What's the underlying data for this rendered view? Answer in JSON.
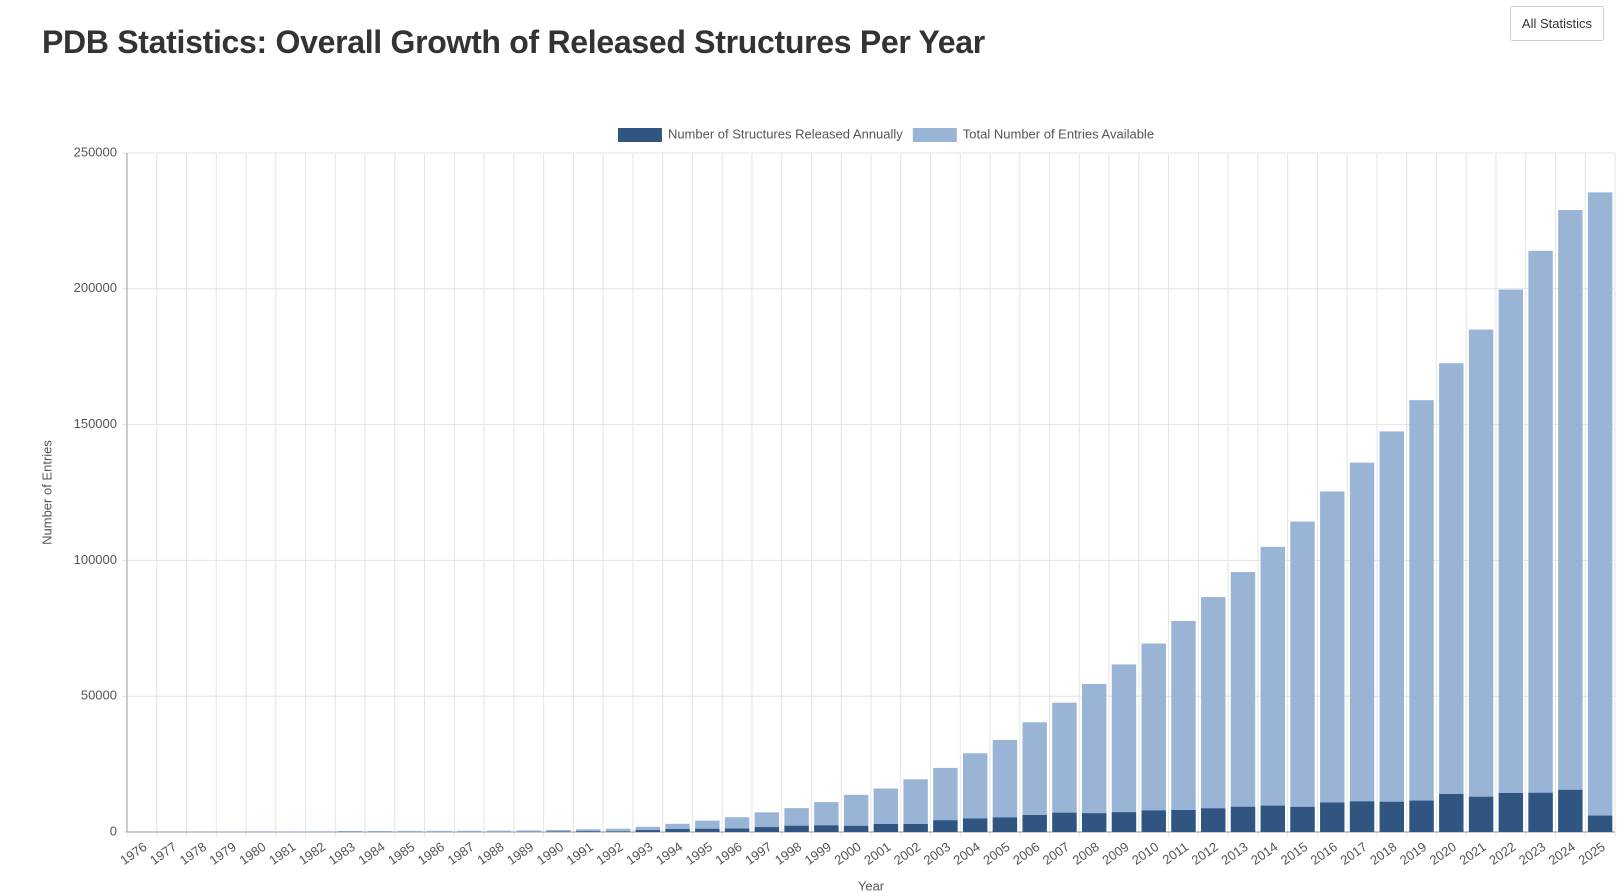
{
  "header": {
    "title": "PDB Statistics: Overall Growth of Released Structures Per Year",
    "button": "All Statistics"
  },
  "chart_data": {
    "type": "bar",
    "x_label": "Year",
    "y_label": "Number of Entries",
    "categories": [
      "1976",
      "1977",
      "1978",
      "1979",
      "1980",
      "1981",
      "1982",
      "1983",
      "1984",
      "1985",
      "1986",
      "1987",
      "1988",
      "1989",
      "1990",
      "1991",
      "1992",
      "1993",
      "1994",
      "1995",
      "1996",
      "1997",
      "1998",
      "1999",
      "2000",
      "2001",
      "2002",
      "2003",
      "2004",
      "2005",
      "2006",
      "2007",
      "2008",
      "2009",
      "2010",
      "2011",
      "2012",
      "2013",
      "2014",
      "2015",
      "2016",
      "2017",
      "2018",
      "2019",
      "2020",
      "2021",
      "2022",
      "2023",
      "2024",
      "2025"
    ],
    "series": [
      {
        "name": "Number of Structures Released Annually",
        "color": "#2f5580",
        "values": [
          13,
          35,
          43,
          37,
          69,
          23,
          31,
          86,
          32,
          27,
          20,
          28,
          49,
          76,
          167,
          267,
          203,
          712,
          1093,
          1173,
          1259,
          1780,
          2301,
          2449,
          2265,
          2951,
          2952,
          4314,
          4972,
          5359,
          6251,
          7090,
          6909,
          7286,
          7943,
          8100,
          8709,
          9290,
          9703,
          9252,
          10864,
          11284,
          11129,
          11563,
          14003,
          12977,
          14358,
          14432,
          15531,
          6040
        ]
      },
      {
        "name": "Total Number of Entries Available",
        "color": "#9ab4d6",
        "values": [
          13,
          48,
          91,
          128,
          197,
          220,
          251,
          337,
          369,
          396,
          416,
          444,
          493,
          569,
          736,
          1003,
          1206,
          1918,
          3011,
          4184,
          5443,
          7223,
          8800,
          11000,
          13700,
          16000,
          19400,
          23600,
          29000,
          33900,
          40400,
          47600,
          54500,
          61700,
          69400,
          77700,
          86500,
          95700,
          105000,
          114300,
          125400,
          136000,
          147500,
          159000,
          172600,
          185000,
          199700,
          214000,
          229000,
          235500
        ]
      }
    ],
    "ylim": [
      0,
      250000
    ],
    "yticks": [
      0,
      50000,
      100000,
      150000,
      200000,
      250000
    ],
    "grid": true
  }
}
